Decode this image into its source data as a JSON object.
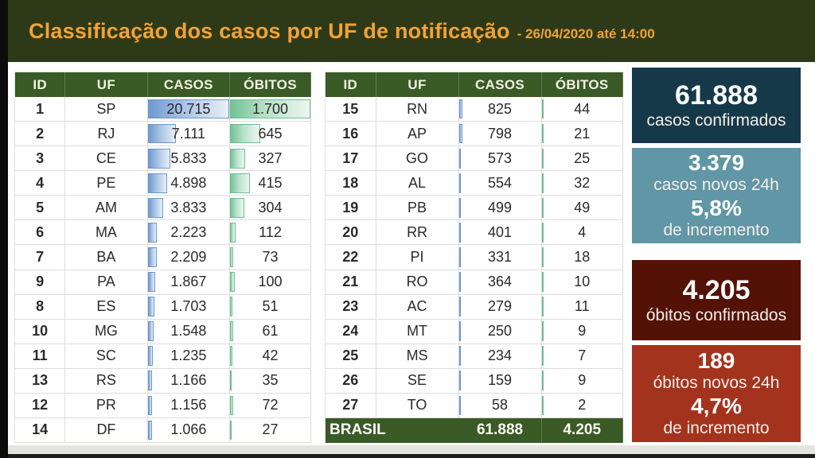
{
  "title": {
    "main": "Classificação dos casos por UF de notificação",
    "suffix": "- 26/04/2020 até 14:00"
  },
  "columns": [
    "ID",
    "UF",
    "CASOS",
    "ÓBITOS"
  ],
  "tables": [
    {
      "name": "left",
      "rows": [
        {
          "id": "1",
          "uf": "SP",
          "casos": "20.715",
          "obitos": "1.700"
        },
        {
          "id": "2",
          "uf": "RJ",
          "casos": "7.111",
          "obitos": "645"
        },
        {
          "id": "3",
          "uf": "CE",
          "casos": "5.833",
          "obitos": "327"
        },
        {
          "id": "4",
          "uf": "PE",
          "casos": "4.898",
          "obitos": "415"
        },
        {
          "id": "5",
          "uf": "AM",
          "casos": "3.833",
          "obitos": "304"
        },
        {
          "id": "6",
          "uf": "MA",
          "casos": "2.223",
          "obitos": "112"
        },
        {
          "id": "7",
          "uf": "BA",
          "casos": "2.209",
          "obitos": "73"
        },
        {
          "id": "9",
          "uf": "PA",
          "casos": "1.867",
          "obitos": "100"
        },
        {
          "id": "8",
          "uf": "ES",
          "casos": "1.703",
          "obitos": "51"
        },
        {
          "id": "10",
          "uf": "MG",
          "casos": "1.548",
          "obitos": "61"
        },
        {
          "id": "11",
          "uf": "SC",
          "casos": "1.235",
          "obitos": "42"
        },
        {
          "id": "13",
          "uf": "RS",
          "casos": "1.166",
          "obitos": "35"
        },
        {
          "id": "12",
          "uf": "PR",
          "casos": "1.156",
          "obitos": "72"
        },
        {
          "id": "14",
          "uf": "DF",
          "casos": "1.066",
          "obitos": "27"
        }
      ]
    },
    {
      "name": "right",
      "rows": [
        {
          "id": "15",
          "uf": "RN",
          "casos": "825",
          "obitos": "44"
        },
        {
          "id": "16",
          "uf": "AP",
          "casos": "798",
          "obitos": "21"
        },
        {
          "id": "17",
          "uf": "GO",
          "casos": "573",
          "obitos": "25"
        },
        {
          "id": "18",
          "uf": "AL",
          "casos": "554",
          "obitos": "32"
        },
        {
          "id": "19",
          "uf": "PB",
          "casos": "499",
          "obitos": "49"
        },
        {
          "id": "20",
          "uf": "RR",
          "casos": "401",
          "obitos": "4"
        },
        {
          "id": "22",
          "uf": "PI",
          "casos": "331",
          "obitos": "18"
        },
        {
          "id": "21",
          "uf": "RO",
          "casos": "364",
          "obitos": "10"
        },
        {
          "id": "23",
          "uf": "AC",
          "casos": "279",
          "obitos": "11"
        },
        {
          "id": "24",
          "uf": "MT",
          "casos": "250",
          "obitos": "9"
        },
        {
          "id": "25",
          "uf": "MS",
          "casos": "234",
          "obitos": "7"
        },
        {
          "id": "26",
          "uf": "SE",
          "casos": "159",
          "obitos": "9"
        },
        {
          "id": "27",
          "uf": "TO",
          "casos": "58",
          "obitos": "2"
        }
      ],
      "total": {
        "label": "BRASIL",
        "casos": "61.888",
        "obitos": "4.205"
      }
    }
  ],
  "cards": [
    {
      "id": "casos-confirmados",
      "bg": "#16394a",
      "lines": [
        {
          "text": "61.888",
          "style": "big"
        },
        {
          "text": "casos confirmados",
          "style": "label"
        }
      ]
    },
    {
      "id": "casos-novos-24h",
      "bg": "#6096a6",
      "lines": [
        {
          "text": "3.379",
          "style": "med"
        },
        {
          "text": "casos novos 24h",
          "style": "label"
        },
        {
          "text": "5,8%",
          "style": "med"
        },
        {
          "text": "de incremento",
          "style": "label"
        }
      ]
    },
    {
      "id": "obitos-confirmados",
      "bg": "#541207",
      "lines": [
        {
          "text": "4.205",
          "style": "big"
        },
        {
          "text": "óbitos confirmados",
          "style": "label"
        }
      ]
    },
    {
      "id": "obitos-novos-24h",
      "bg": "#a4331d",
      "lines": [
        {
          "text": "189",
          "style": "med"
        },
        {
          "text": "óbitos novos 24h",
          "style": "label"
        },
        {
          "text": "4,7%",
          "style": "med"
        },
        {
          "text": "de incremento",
          "style": "label"
        }
      ]
    }
  ],
  "colors": {
    "accent_orange": "#f2a238",
    "band_green": "#2e3a17",
    "header_green": "#3a5a26",
    "casos_bar_blue": "#6c96cb",
    "obitos_bar_green": "#6fbd92",
    "card_teal_dark": "#16394a",
    "card_teal": "#6096a6",
    "card_maroon": "#541207",
    "card_red": "#a4331d"
  },
  "chart_data": {
    "type": "table",
    "title": "Classificação dos casos por UF de notificação - 26/04/2020 até 14:00",
    "columns": [
      "ID",
      "UF",
      "CASOS",
      "ÓBITOS"
    ],
    "rows": [
      [
        1,
        "SP",
        20715,
        1700
      ],
      [
        2,
        "RJ",
        7111,
        645
      ],
      [
        3,
        "CE",
        5833,
        327
      ],
      [
        4,
        "PE",
        4898,
        415
      ],
      [
        5,
        "AM",
        3833,
        304
      ],
      [
        6,
        "MA",
        2223,
        112
      ],
      [
        7,
        "BA",
        2209,
        73
      ],
      [
        9,
        "PA",
        1867,
        100
      ],
      [
        8,
        "ES",
        1703,
        51
      ],
      [
        10,
        "MG",
        1548,
        61
      ],
      [
        11,
        "SC",
        1235,
        42
      ],
      [
        13,
        "RS",
        1166,
        35
      ],
      [
        12,
        "PR",
        1156,
        72
      ],
      [
        14,
        "DF",
        1066,
        27
      ],
      [
        15,
        "RN",
        825,
        44
      ],
      [
        16,
        "AP",
        798,
        21
      ],
      [
        17,
        "GO",
        573,
        25
      ],
      [
        18,
        "AL",
        554,
        32
      ],
      [
        19,
        "PB",
        499,
        49
      ],
      [
        20,
        "RR",
        401,
        4
      ],
      [
        22,
        "PI",
        331,
        18
      ],
      [
        21,
        "RO",
        364,
        10
      ],
      [
        23,
        "AC",
        279,
        11
      ],
      [
        24,
        "MT",
        250,
        9
      ],
      [
        25,
        "MS",
        234,
        7
      ],
      [
        26,
        "SE",
        159,
        9
      ],
      [
        27,
        "TO",
        58,
        2
      ]
    ],
    "total": {
      "label": "BRASIL",
      "casos": 61888,
      "obitos": 4205
    },
    "databars": {
      "casos": {
        "style": "blue-gradient",
        "max": 20715
      },
      "obitos": {
        "style": "green-gradient",
        "max": 1700
      }
    },
    "summary_cards": {
      "casos_confirmados": 61888,
      "casos_novos_24h": 3379,
      "incremento_casos": "5,8%",
      "obitos_confirmados": 4205,
      "obitos_novos_24h": 189,
      "incremento_obitos": "4,7%"
    }
  }
}
